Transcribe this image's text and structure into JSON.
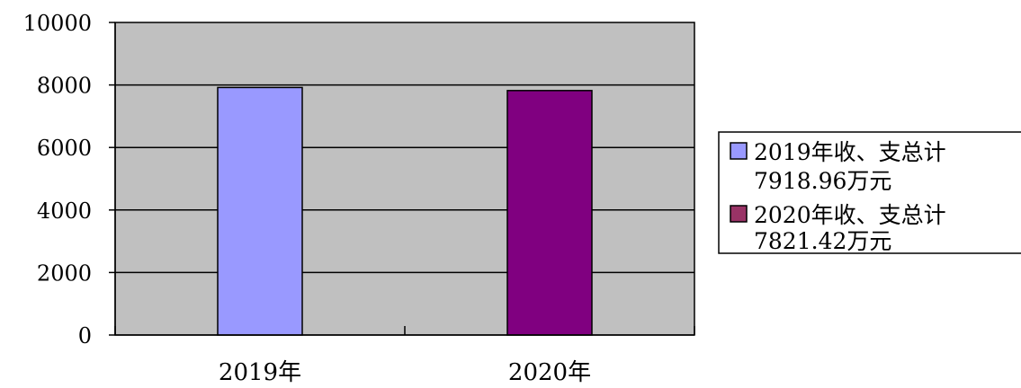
{
  "chart_data": {
    "type": "bar",
    "categories": [
      "2019年",
      "2020年"
    ],
    "series": [
      {
        "values": [
          7918.96,
          0
        ],
        "color": "#9999ff"
      },
      {
        "values": [
          0,
          7821.42
        ],
        "color": "#800080"
      }
    ],
    "title": "",
    "xlabel": "",
    "ylabel": "",
    "ylim": [
      0,
      10000
    ],
    "yticks": [
      0,
      2000,
      4000,
      6000,
      8000,
      10000
    ],
    "grid": true,
    "plot_background": "#c0c0c0",
    "legend": {
      "placement": "right",
      "entries": [
        {
          "line1": "2019年收、支总计",
          "line2": "7918.96万元",
          "color": "#9999ff"
        },
        {
          "line1": "2020年收、支总计",
          "line2": "7821.42万元",
          "color": "#993366"
        }
      ]
    }
  }
}
